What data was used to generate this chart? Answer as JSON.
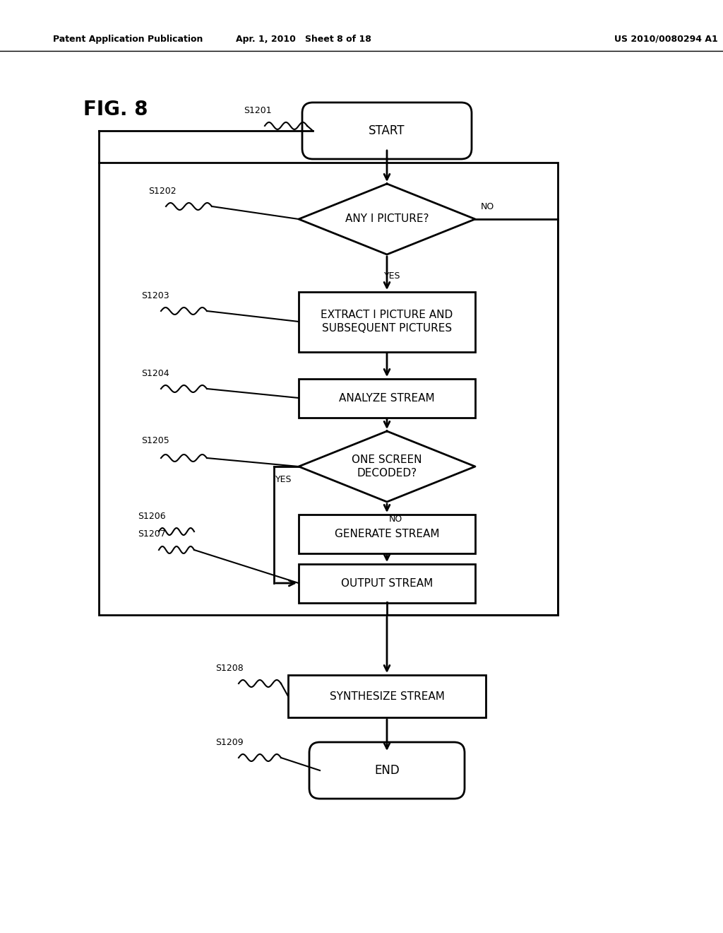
{
  "bg_color": "#ffffff",
  "header_left": "Patent Application Publication",
  "header_mid": "Apr. 1, 2010   Sheet 8 of 18",
  "header_right": "US 2010/0080294 A1",
  "fig_label": "FIG. 8"
}
